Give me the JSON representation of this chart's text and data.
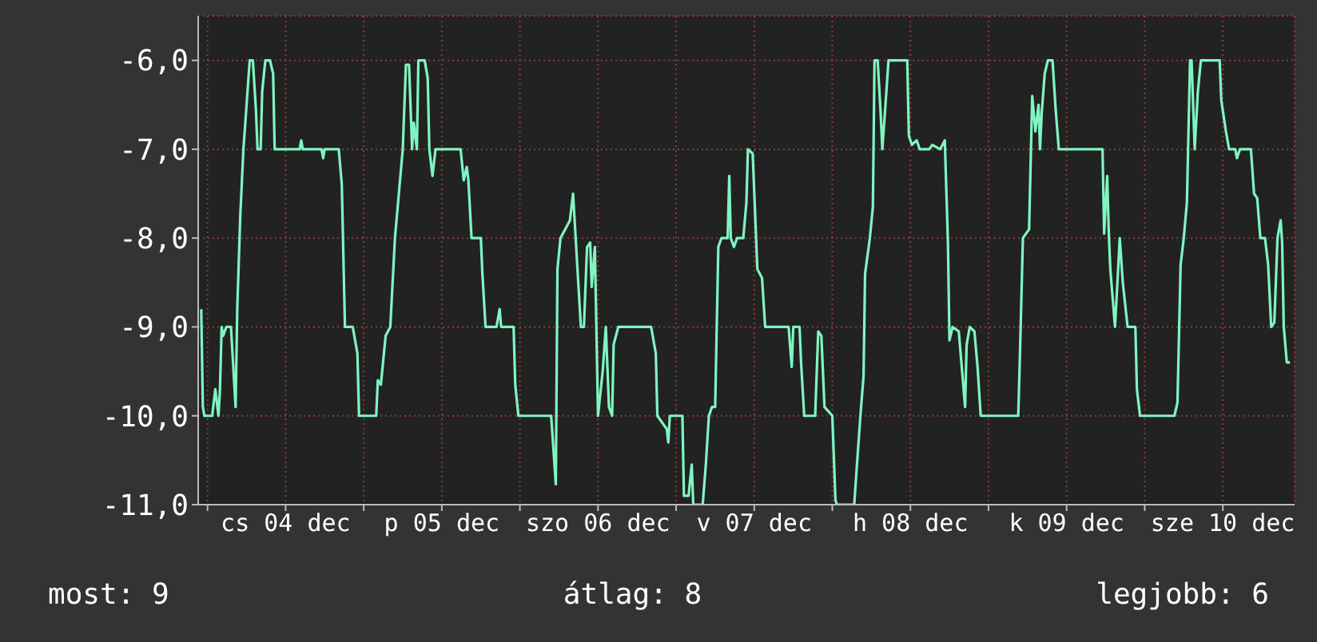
{
  "chart_data": {
    "type": "line",
    "x": [
      "--12-03T23:02",
      "--12-03T23:17",
      "--12-03T23:31",
      "--12-04T00:43",
      "--12-04T01:12",
      "--12-04T01:41",
      "--12-04T01:55",
      "--12-04T02:10",
      "--12-04T02:24",
      "--12-04T02:53",
      "--12-04T03:36",
      "--12-04T04:19",
      "--12-04T04:34",
      "--12-04T05:02",
      "--12-04T05:31",
      "--12-04T06:00",
      "--12-04T06:29",
      "--12-04T06:58",
      "--12-04T07:26",
      "--12-04T07:41",
      "--12-04T08:10",
      "--12-04T08:24",
      "--12-04T08:53",
      "--12-04T09:36",
      "--12-04T10:05",
      "--12-04T10:19",
      "--12-04T14:10",
      "--12-04T14:24",
      "--12-04T14:38",
      "--12-04T17:31",
      "--12-04T17:46",
      "--12-04T18:00",
      "--12-04T20:10",
      "--12-04T20:38",
      "--12-04T21:07",
      "--12-04T22:19",
      "--12-04T23:02",
      "--12-04T23:17",
      "--12-05T01:55",
      "--12-05T02:10",
      "--12-05T02:38",
      "--12-05T03:22",
      "--12-05T04:05",
      "--12-05T04:48",
      "--12-05T05:31",
      "--12-05T06:00",
      "--12-05T06:29",
      "--12-05T06:58",
      "--12-05T07:26",
      "--12-05T07:41",
      "--12-05T08:10",
      "--12-05T08:24",
      "--12-05T09:22",
      "--12-05T09:50",
      "--12-05T10:05",
      "--12-05T10:34",
      "--12-05T11:02",
      "--12-05T14:53",
      "--12-05T15:22",
      "--12-05T15:50",
      "--12-05T16:05",
      "--12-05T16:34",
      "--12-05T18:00",
      "--12-05T18:14",
      "--12-05T18:43",
      "--12-05T20:24",
      "--12-05T20:53",
      "--12-05T21:07",
      "--12-05T23:02",
      "--12-05T23:17",
      "--12-05T23:46",
      "--12-06T04:48",
      "--12-06T05:31",
      "--12-06T05:46",
      "--12-06T06:14",
      "--12-06T07:41",
      "--12-06T08:10",
      "--12-06T08:53",
      "--12-06T09:22",
      "--12-06T09:50",
      "--12-06T10:19",
      "--12-06T10:48",
      "--12-06T11:02",
      "--12-06T11:31",
      "--12-06T12:00",
      "--12-06T12:43",
      "--12-06T13:12",
      "--12-06T13:41",
      "--12-06T14:10",
      "--12-06T14:24",
      "--12-06T15:07",
      "--12-06T20:10",
      "--12-06T20:53",
      "--12-06T21:07",
      "--12-06T22:34",
      "--12-06T22:48",
      "--12-06T23:02",
      "--12-07T00:58",
      "--12-07T01:12",
      "--12-07T01:55",
      "--12-07T02:24",
      "--12-07T02:38",
      "--12-07T04:05",
      "--12-07T04:34",
      "--12-07T05:02",
      "--12-07T05:31",
      "--12-07T06:00",
      "--12-07T06:29",
      "--12-07T06:58",
      "--12-07T07:55",
      "--12-07T08:10",
      "--12-07T08:24",
      "--12-07T08:53",
      "--12-07T09:22",
      "--12-07T10:19",
      "--12-07T10:48",
      "--12-07T11:02",
      "--12-07T11:46",
      "--12-07T12:29",
      "--12-07T13:12",
      "--12-07T13:41",
      "--12-07T17:17",
      "--12-07T17:46",
      "--12-07T18:00",
      "--12-07T18:58",
      "--12-07T19:12",
      "--12-07T19:41",
      "--12-07T21:22",
      "--12-07T21:50",
      "--12-07T22:19",
      "--12-07T22:48",
      "--12-08T00:00",
      "--12-08T00:29",
      "--12-08T00:43",
      "--12-08T03:22",
      "--12-08T03:50",
      "--12-08T04:19",
      "--12-08T04:48",
      "--12-08T05:02",
      "--12-08T05:46",
      "--12-08T06:14",
      "--12-08T06:29",
      "--12-08T06:58",
      "--12-08T07:26",
      "--12-08T07:41",
      "--12-08T08:10",
      "--12-08T08:38",
      "--12-08T11:31",
      "--12-08T11:46",
      "--12-08T12:14",
      "--12-08T12:58",
      "--12-08T13:26",
      "--12-08T14:53",
      "--12-08T15:22",
      "--12-08T16:34",
      "--12-08T17:17",
      "--12-08T17:46",
      "--12-08T18:00",
      "--12-08T18:29",
      "--12-08T19:26",
      "--12-08T20:24",
      "--12-08T20:38",
      "--12-08T21:07",
      "--12-08T21:50",
      "--12-08T22:19",
      "--12-08T22:48",
      "--12-09T04:34",
      "--12-09T04:48",
      "--12-09T05:17",
      "--12-09T06:14",
      "--12-09T06:43",
      "--12-09T07:12",
      "--12-09T07:41",
      "--12-09T07:55",
      "--12-09T08:10",
      "--12-09T08:38",
      "--12-09T09:07",
      "--12-09T09:50",
      "--12-09T10:19",
      "--12-09T10:48",
      "--12-09T17:31",
      "--12-09T17:46",
      "--12-09T18:14",
      "--12-09T18:29",
      "--12-09T18:43",
      "--12-09T19:26",
      "--12-09T19:55",
      "--12-09T20:10",
      "--12-09T20:38",
      "--12-09T21:22",
      "--12-09T22:34",
      "--12-09T22:48",
      "--12-09T23:17",
      "--12-10T04:34",
      "--12-10T05:02",
      "--12-10T05:31",
      "--12-10T06:00",
      "--12-10T06:29",
      "--12-10T06:58",
      "--12-10T07:12",
      "--12-10T07:41",
      "--12-10T08:10",
      "--12-10T08:38",
      "--12-10T11:31",
      "--12-10T11:46",
      "--12-10T12:29",
      "--12-10T12:58",
      "--12-10T13:55",
      "--12-10T14:10",
      "--12-10T14:38",
      "--12-10T16:19",
      "--12-10T16:48",
      "--12-10T17:17",
      "--12-10T17:46",
      "--12-10T18:29",
      "--12-10T18:58",
      "--12-10T19:26",
      "--12-10T19:55",
      "--12-10T20:24",
      "--12-10T20:53",
      "--12-10T21:07",
      "--12-10T21:22",
      "--12-10T21:50",
      "--12-10T22:19"
    ],
    "values": [
      -8.8,
      -9.9,
      -10,
      -10,
      -9.7,
      -10,
      -9.7,
      -9.0,
      -9.1,
      -9.0,
      -9.0,
      -9.9,
      -8.8,
      -7.75,
      -7.0,
      -6.5,
      -6.0,
      -6.0,
      -6.55,
      -7.0,
      -7.0,
      -6.35,
      -6.0,
      -6.0,
      -6.15,
      -7.0,
      -7.0,
      -6.9,
      -7.0,
      -7.0,
      -7.1,
      -7.0,
      -7.0,
      -7.4,
      -9.0,
      -9.0,
      -9.3,
      -10,
      -10,
      -9.6,
      -9.65,
      -9.1,
      -9.0,
      -8.0,
      -7.4,
      -7.0,
      -6.05,
      -6.05,
      -7.0,
      -6.7,
      -7.0,
      -6.0,
      -6.0,
      -6.2,
      -7.0,
      -7.3,
      -7.0,
      -7.0,
      -7.35,
      -7.2,
      -7.35,
      -8.0,
      -8.0,
      -8.4,
      -9.0,
      -9.0,
      -8.8,
      -9.0,
      -9.0,
      -9.65,
      -10,
      -10,
      -10.77,
      -8.35,
      -8.0,
      -7.8,
      -7.5,
      -8.4,
      -9.0,
      -9.0,
      -8.1,
      -8.05,
      -8.55,
      -8.1,
      -10,
      -9.5,
      -9.0,
      -9.9,
      -10,
      -9.2,
      -9.0,
      -9.0,
      -9.3,
      -10,
      -10.15,
      -10.3,
      -10,
      -10,
      -10.9,
      -10.9,
      -10.55,
      -11,
      -11,
      -10.55,
      -10,
      -9.9,
      -9.9,
      -8.1,
      -8.0,
      -8.0,
      -7.3,
      -8.0,
      -8.1,
      -8.0,
      -8.0,
      -7.6,
      -7.0,
      -7.05,
      -8.35,
      -8.45,
      -9.0,
      -9.0,
      -9.45,
      -9.0,
      -9.0,
      -9.4,
      -10,
      -10,
      -9.05,
      -9.1,
      -9.9,
      -10,
      -10.95,
      -11,
      -11,
      -10.5,
      -10,
      -9.55,
      -8.4,
      -8.0,
      -7.65,
      -6.0,
      -6.0,
      -6.6,
      -7.0,
      -6.5,
      -6.0,
      -6.0,
      -6.85,
      -6.95,
      -6.9,
      -7.0,
      -7.0,
      -6.95,
      -7.0,
      -6.9,
      -8.05,
      -9.15,
      -9.0,
      -9.05,
      -9.9,
      -9.2,
      -9.0,
      -9.05,
      -9.45,
      -10,
      -10,
      -9.4,
      -8.0,
      -7.9,
      -6.4,
      -6.8,
      -6.5,
      -7.0,
      -6.6,
      -6.15,
      -6.0,
      -6.0,
      -6.55,
      -7.0,
      -7.0,
      -7.95,
      -7.3,
      -7.95,
      -8.35,
      -9.0,
      -8.35,
      -8.0,
      -8.5,
      -9.0,
      -9.0,
      -9.7,
      -10,
      -10,
      -9.85,
      -8.3,
      -8.0,
      -7.6,
      -6.0,
      -6.0,
      -7.0,
      -6.35,
      -6.0,
      -6.0,
      -6.45,
      -6.8,
      -7.0,
      -7.0,
      -7.1,
      -7.0,
      -7.0,
      -7.5,
      -7.55,
      -8.0,
      -8.0,
      -8.3,
      -9.0,
      -8.95,
      -8.0,
      -7.8,
      -8.05,
      -9.0,
      -9.4,
      -9.4
    ],
    "color": "#7ff5c2",
    "xlim": [
      "--12-03T22:34",
      "--12-10T23:02"
    ],
    "xticks": [
      {
        "value": "--12-04T00:00",
        "label": null
      },
      {
        "value": "--12-04T12:00",
        "label": "cs 04 dec"
      },
      {
        "value": "--12-05T00:00",
        "label": null
      },
      {
        "value": "--12-05T12:00",
        "label": "p 05 dec"
      },
      {
        "value": "--12-06T00:00",
        "label": null
      },
      {
        "value": "--12-06T12:00",
        "label": "szo 06 dec"
      },
      {
        "value": "--12-07T00:00",
        "label": null
      },
      {
        "value": "--12-07T12:00",
        "label": "v 07 dec"
      },
      {
        "value": "--12-08T00:00",
        "label": null
      },
      {
        "value": "--12-08T12:00",
        "label": "h 08 dec"
      },
      {
        "value": "--12-09T00:00",
        "label": null
      },
      {
        "value": "--12-09T12:00",
        "label": "k 09 dec"
      },
      {
        "value": "--12-10T00:00",
        "label": null
      },
      {
        "value": "--12-10T12:00",
        "label": "sze 10 dec"
      }
    ],
    "ylim": [
      -11,
      -5.5
    ],
    "yticks": [
      {
        "value": -11,
        "label": "-11,0"
      },
      {
        "value": -10,
        "label": "-10,0"
      },
      {
        "value": -9,
        "label": "-9,0"
      },
      {
        "value": -8,
        "label": "-8,0"
      },
      {
        "value": -7,
        "label": "-7,0"
      },
      {
        "value": -6,
        "label": "-6,0"
      }
    ],
    "grid": true,
    "annotations": [
      "most: 9",
      "átlag: 8",
      "legjobb: 6"
    ]
  }
}
